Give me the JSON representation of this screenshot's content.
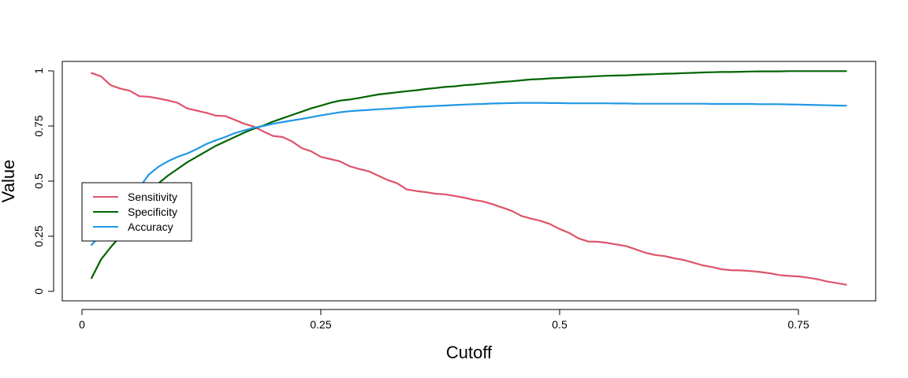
{
  "chart_data": {
    "type": "line",
    "title": "",
    "xlabel": "Cutoff",
    "ylabel": "Value",
    "xlim": [
      0,
      0.8
    ],
    "ylim": [
      0,
      1
    ],
    "x_ticks": [
      0,
      0.25,
      0.5,
      0.75
    ],
    "x_tick_labels": [
      "0",
      "0.25",
      "0.5",
      "0.75"
    ],
    "y_ticks": [
      0,
      0.25,
      0.5,
      0.75,
      1
    ],
    "y_tick_labels": [
      "0",
      "0.25",
      "0.5",
      "0.75",
      "1"
    ],
    "grid": false,
    "legend_position": "left",
    "x": [
      0.01,
      0.02,
      0.03,
      0.04,
      0.05,
      0.06,
      0.07,
      0.08,
      0.09,
      0.1,
      0.11,
      0.12,
      0.13,
      0.14,
      0.15,
      0.16,
      0.17,
      0.18,
      0.19,
      0.2,
      0.21,
      0.22,
      0.23,
      0.24,
      0.25,
      0.26,
      0.27,
      0.28,
      0.29,
      0.3,
      0.31,
      0.32,
      0.33,
      0.34,
      0.35,
      0.36,
      0.37,
      0.38,
      0.39,
      0.4,
      0.41,
      0.42,
      0.43,
      0.44,
      0.45,
      0.46,
      0.47,
      0.48,
      0.49,
      0.5,
      0.51,
      0.52,
      0.53,
      0.54,
      0.55,
      0.56,
      0.57,
      0.58,
      0.59,
      0.6,
      0.61,
      0.62,
      0.63,
      0.64,
      0.65,
      0.66,
      0.67,
      0.68,
      0.69,
      0.7,
      0.71,
      0.72,
      0.73,
      0.74,
      0.75,
      0.76,
      0.77,
      0.78,
      0.79,
      0.8
    ],
    "series": [
      {
        "name": "Sensitivity",
        "color": "#DF536B",
        "values": [
          0.99,
          0.975,
          0.935,
          0.92,
          0.91,
          0.885,
          0.883,
          0.875,
          0.866,
          0.855,
          0.83,
          0.82,
          0.81,
          0.797,
          0.795,
          0.778,
          0.76,
          0.747,
          0.725,
          0.705,
          0.7,
          0.68,
          0.65,
          0.635,
          0.61,
          0.6,
          0.59,
          0.568,
          0.555,
          0.545,
          0.525,
          0.505,
          0.49,
          0.462,
          0.455,
          0.45,
          0.443,
          0.44,
          0.433,
          0.425,
          0.415,
          0.408,
          0.395,
          0.38,
          0.365,
          0.342,
          0.33,
          0.32,
          0.305,
          0.283,
          0.265,
          0.24,
          0.226,
          0.225,
          0.22,
          0.212,
          0.205,
          0.19,
          0.175,
          0.165,
          0.16,
          0.15,
          0.142,
          0.13,
          0.118,
          0.11,
          0.1,
          0.096,
          0.095,
          0.092,
          0.088,
          0.082,
          0.074,
          0.07,
          0.068,
          0.062,
          0.055,
          0.045,
          0.038,
          0.03
        ]
      },
      {
        "name": "Specificity",
        "color": "#006400",
        "values": [
          0.06,
          0.145,
          0.2,
          0.25,
          0.33,
          0.42,
          0.46,
          0.49,
          0.525,
          0.555,
          0.585,
          0.61,
          0.635,
          0.66,
          0.68,
          0.7,
          0.72,
          0.738,
          0.752,
          0.77,
          0.785,
          0.8,
          0.815,
          0.83,
          0.842,
          0.855,
          0.865,
          0.87,
          0.877,
          0.885,
          0.893,
          0.898,
          0.903,
          0.908,
          0.912,
          0.918,
          0.922,
          0.927,
          0.93,
          0.935,
          0.938,
          0.942,
          0.946,
          0.95,
          0.953,
          0.957,
          0.961,
          0.963,
          0.966,
          0.968,
          0.97,
          0.972,
          0.974,
          0.976,
          0.978,
          0.979,
          0.98,
          0.982,
          0.984,
          0.985,
          0.987,
          0.988,
          0.99,
          0.991,
          0.993,
          0.994,
          0.995,
          0.995,
          0.996,
          0.997,
          0.998,
          0.998,
          0.998,
          0.999,
          0.999,
          0.999,
          0.999,
          0.999,
          0.999,
          0.999
        ]
      },
      {
        "name": "Accuracy",
        "color": "#2297E6",
        "values": [
          0.21,
          0.26,
          0.3,
          0.35,
          0.41,
          0.47,
          0.53,
          0.565,
          0.59,
          0.61,
          0.625,
          0.645,
          0.668,
          0.685,
          0.7,
          0.718,
          0.73,
          0.742,
          0.75,
          0.76,
          0.768,
          0.775,
          0.782,
          0.79,
          0.798,
          0.805,
          0.812,
          0.817,
          0.82,
          0.823,
          0.826,
          0.828,
          0.831,
          0.834,
          0.837,
          0.839,
          0.841,
          0.843,
          0.845,
          0.847,
          0.849,
          0.85,
          0.852,
          0.853,
          0.854,
          0.855,
          0.855,
          0.855,
          0.854,
          0.854,
          0.853,
          0.853,
          0.853,
          0.853,
          0.853,
          0.852,
          0.852,
          0.851,
          0.851,
          0.851,
          0.851,
          0.851,
          0.851,
          0.851,
          0.851,
          0.85,
          0.85,
          0.85,
          0.85,
          0.85,
          0.849,
          0.849,
          0.849,
          0.848,
          0.847,
          0.846,
          0.845,
          0.844,
          0.843,
          0.842
        ]
      }
    ]
  }
}
